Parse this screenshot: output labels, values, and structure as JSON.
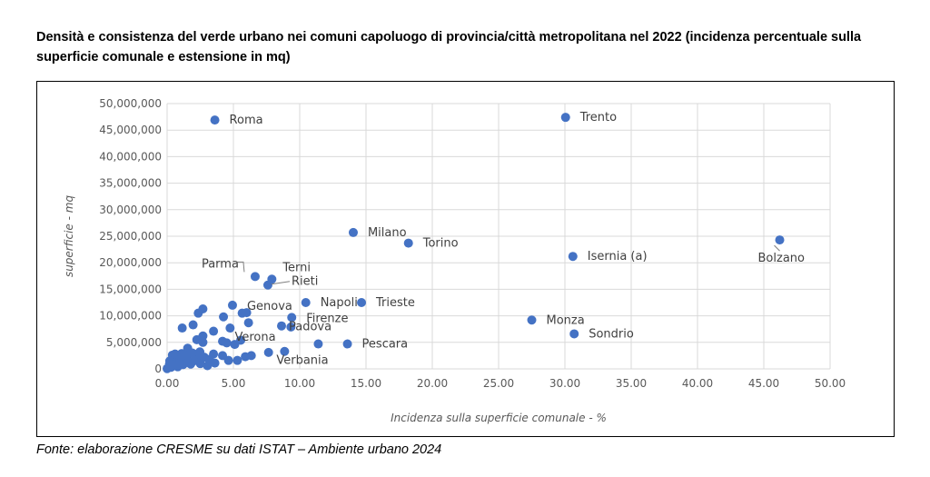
{
  "title": "Densità e consistenza del verde urbano nei comuni capoluogo di provincia/città metropolitana nel 2022 (incidenza percentuale sulla superficie comunale e estensione in mq)",
  "source": "Fonte: elaborazione CRESME su dati ISTAT – Ambiente urbano 2024",
  "chart_data": {
    "type": "scatter",
    "title": "",
    "xlabel": "Incidenza sulla superficie comunale - %",
    "ylabel": "superficie - mq",
    "xlim": [
      0,
      50
    ],
    "ylim": [
      0,
      50000000
    ],
    "xticks": [
      "0.00",
      "5.00",
      "10.00",
      "15.00",
      "20.00",
      "25.00",
      "30.00",
      "35.00",
      "40.00",
      "45.00",
      "50.00"
    ],
    "yticks": [
      "0",
      "5,000,000",
      "10,000,000",
      "15,000,000",
      "20,000,000",
      "25,000,000",
      "30,000,000",
      "35,000,000",
      "40,000,000",
      "45,000,000",
      "50,000,000"
    ],
    "grid": true,
    "legend": "none",
    "color": "#4472C4",
    "points": [
      {
        "label": "Roma",
        "x": 3.6,
        "y": 46900000
      },
      {
        "label": "Trento",
        "x": 30.05,
        "y": 47400000
      },
      {
        "label": "Milano",
        "x": 14.04,
        "y": 25700000
      },
      {
        "label": "Torino",
        "x": 18.2,
        "y": 23700000
      },
      {
        "label": "Isernia (a)",
        "x": 30.6,
        "y": 21200000
      },
      {
        "label": "Bolzano",
        "x": 46.2,
        "y": 24300000
      },
      {
        "label": "Parma",
        "x": 6.64,
        "y": 17400000
      },
      {
        "label": "Terni",
        "x": 7.9,
        "y": 16900000
      },
      {
        "label": "Rieti",
        "x": 7.6,
        "y": 15800000
      },
      {
        "label": "Napoli",
        "x": 10.46,
        "y": 12500000
      },
      {
        "label": "Trieste",
        "x": 14.66,
        "y": 12500000
      },
      {
        "label": "Genova",
        "x": 4.93,
        "y": 12000000
      },
      {
        "label": "Firenze",
        "x": 9.4,
        "y": 9700000
      },
      {
        "label": "Padova",
        "x": 8.63,
        "y": 8100000
      },
      {
        "label": "Verona",
        "x": 5.1,
        "y": 4600000
      },
      {
        "label": "Monza",
        "x": 27.5,
        "y": 9200000
      },
      {
        "label": "Sondrio",
        "x": 30.7,
        "y": 6600000
      },
      {
        "label": "Pescara",
        "x": 13.6,
        "y": 4700000
      },
      {
        "label": "Verbania",
        "x": 8.86,
        "y": 3300000
      },
      {
        "x": 9.34,
        "y": 7900000
      },
      {
        "x": 11.4,
        "y": 4700000
      },
      {
        "x": 7.65,
        "y": 3100000
      },
      {
        "x": 2.7,
        "y": 11300000
      },
      {
        "x": 2.35,
        "y": 10500000
      },
      {
        "x": 5.66,
        "y": 10500000
      },
      {
        "x": 6.0,
        "y": 10600000
      },
      {
        "x": 4.25,
        "y": 9800000
      },
      {
        "x": 6.14,
        "y": 8700000
      },
      {
        "x": 1.14,
        "y": 7700000
      },
      {
        "x": 1.96,
        "y": 8300000
      },
      {
        "x": 3.5,
        "y": 7100000
      },
      {
        "x": 4.75,
        "y": 7700000
      },
      {
        "x": 2.24,
        "y": 5500000
      },
      {
        "x": 2.7,
        "y": 6200000
      },
      {
        "x": 2.7,
        "y": 5000000
      },
      {
        "x": 4.18,
        "y": 5200000
      },
      {
        "x": 4.5,
        "y": 4900000
      },
      {
        "x": 5.55,
        "y": 5400000
      },
      {
        "x": 1.55,
        "y": 3900000
      },
      {
        "x": 2.47,
        "y": 3200000
      },
      {
        "x": 3.5,
        "y": 2800000
      },
      {
        "x": 4.18,
        "y": 2500000
      },
      {
        "x": 4.63,
        "y": 1600000
      },
      {
        "x": 5.3,
        "y": 1600000
      },
      {
        "x": 5.9,
        "y": 2300000
      },
      {
        "x": 6.35,
        "y": 2500000
      },
      {
        "x": 3.04,
        "y": 600000
      },
      {
        "x": 2.24,
        "y": 2100000
      },
      {
        "x": 0.4,
        "y": 2600000
      },
      {
        "x": 0.87,
        "y": 2100000
      },
      {
        "x": 1.3,
        "y": 1500000
      },
      {
        "x": 0.18,
        "y": 900000
      },
      {
        "x": 0.0,
        "y": 50000
      },
      {
        "x": 0.64,
        "y": 600000
      },
      {
        "x": 1.78,
        "y": 900000
      },
      {
        "x": 0.3,
        "y": 300000
      },
      {
        "x": 0.5,
        "y": 1200000
      },
      {
        "x": 0.8,
        "y": 400000
      },
      {
        "x": 1.0,
        "y": 1800000
      },
      {
        "x": 1.2,
        "y": 800000
      },
      {
        "x": 1.5,
        "y": 2500000
      },
      {
        "x": 2.0,
        "y": 1500000
      },
      {
        "x": 2.5,
        "y": 1000000
      },
      {
        "x": 3.2,
        "y": 1800000
      },
      {
        "x": 0.6,
        "y": 2800000
      },
      {
        "x": 1.9,
        "y": 3000000
      },
      {
        "x": 0.2,
        "y": 1500000
      },
      {
        "x": 1.1,
        "y": 2900000
      },
      {
        "x": 2.8,
        "y": 2200000
      },
      {
        "x": 3.6,
        "y": 1100000
      },
      {
        "x": 0.9,
        "y": 1000000
      },
      {
        "x": 0.4,
        "y": 800000
      },
      {
        "x": 1.6,
        "y": 1200000
      }
    ]
  }
}
